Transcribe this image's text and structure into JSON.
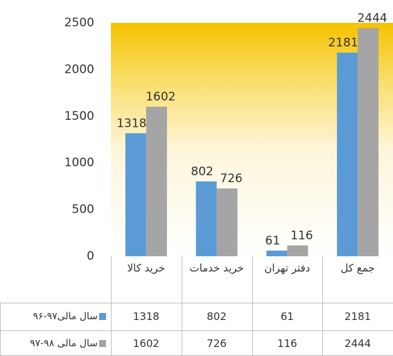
{
  "chart_data": {
    "type": "bar",
    "categories": [
      "خرید کالا",
      "خرید خدمات",
      "دفتر تهران",
      "جمع کل"
    ],
    "series": [
      {
        "name": "سال مالی۹۷-۹۶",
        "color": "#5b9bd5",
        "values": [
          1318,
          802,
          61,
          2181
        ]
      },
      {
        "name": "سال مالی ۹۸-۹۷",
        "color": "#a5a5a5",
        "values": [
          1602,
          726,
          116,
          2444
        ]
      }
    ],
    "ylim": [
      0,
      2500
    ],
    "yticks": [
      0,
      500,
      1000,
      1500,
      2000,
      2500
    ],
    "grid": false,
    "legend": "table"
  }
}
